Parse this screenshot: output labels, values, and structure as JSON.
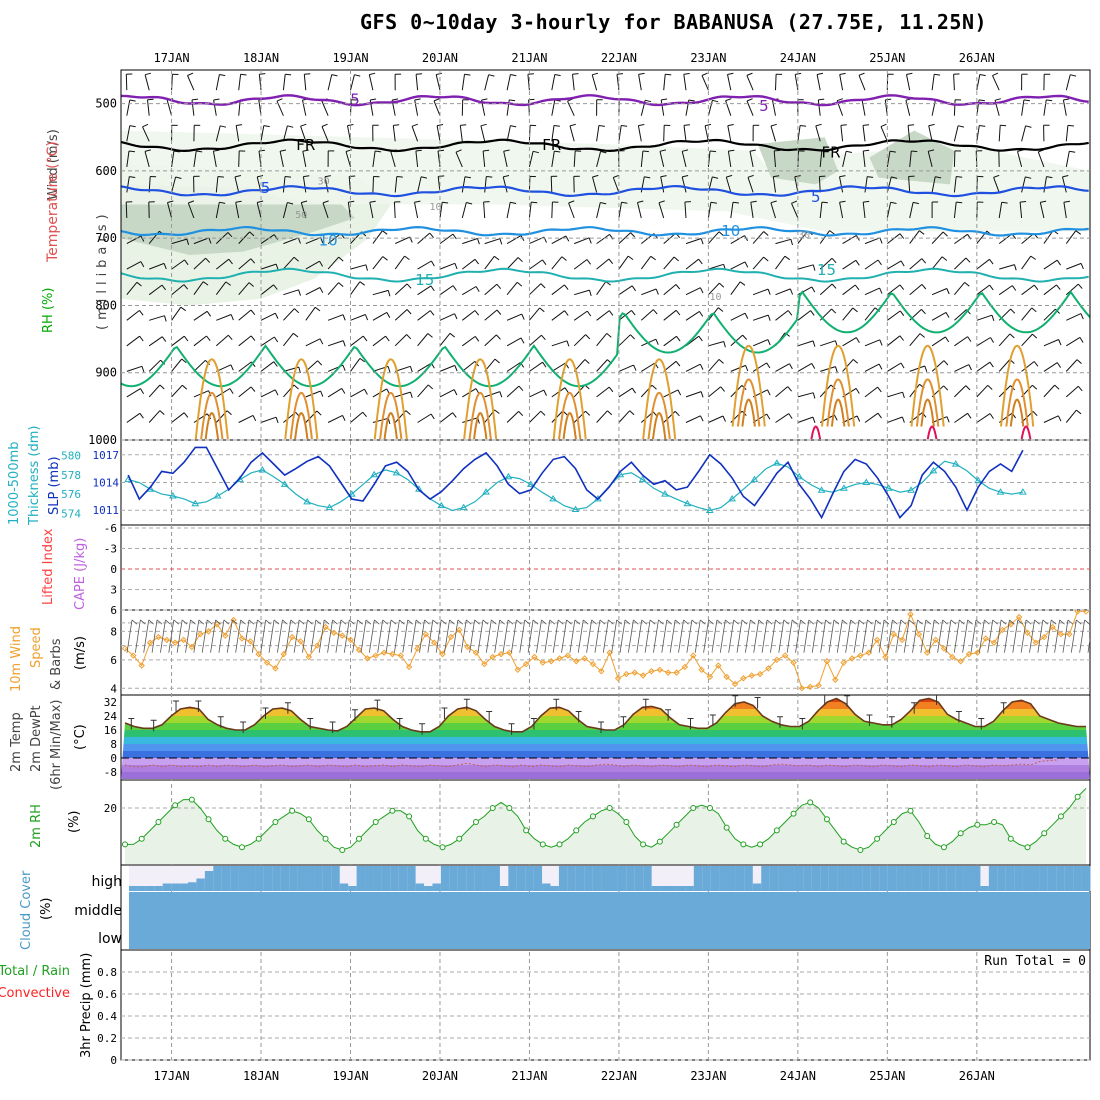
{
  "title": "GFS 0~10day 3-hourly for BABANUSA (27.75E, 11.25N)",
  "date_labels": [
    "17JAN",
    "18JAN",
    "19JAN",
    "20JAN",
    "21JAN",
    "22JAN",
    "23JAN",
    "24JAN",
    "25JAN",
    "26JAN"
  ],
  "panel_labels": {
    "upper": {
      "wind": "Wind (m/s)",
      "temperature": "Temperature (°C)",
      "rh": "RH (%)",
      "millibars": "(millibars)"
    },
    "thickness": {
      "thk": "1000-500mb",
      "thk2": "Thickness (dm)",
      "slp": "SLP (mb)"
    },
    "stability": {
      "li": "Lifted Index",
      "cape": "CAPE (J/kg)"
    },
    "wind10": {
      "a": "10m Wind",
      "b": "Speed",
      "c": "& Barbs",
      "units": "(m/s)"
    },
    "temp2m": {
      "a": "2m Temp",
      "b": "2m DewPt",
      "c": "(6hr Min/Max)",
      "units": "(°C)"
    },
    "rh2m": {
      "a": "2m RH",
      "units": "(%)"
    },
    "cloud": {
      "a": "Cloud Cover",
      "units": "(%)",
      "high": "high",
      "middle": "middle",
      "low": "low"
    },
    "precip": {
      "a": "Total / Rain",
      "b": "Convective",
      "c": "3hr Precip (mm)",
      "run_total": "Run Total = 0"
    }
  },
  "colors": {
    "temp_label": "#e05050",
    "rh_label": "#00bb00",
    "wind_label": "#444444",
    "slp": "#1030c0",
    "thk": "#20b0c0",
    "li": "#ff4040",
    "cape": "#c060e0",
    "wind10": "#f0a030",
    "rh2m": "#20a020",
    "cloud": "#6aaad8",
    "precip_total": "#20a020",
    "precip_conv": "#ff2020"
  },
  "chart_data": [
    {
      "type": "line",
      "panel": "upper_air",
      "yaxis": {
        "label": "millibars",
        "ticks": [
          500,
          600,
          700,
          800,
          900,
          1000
        ],
        "range": [
          450,
          1000
        ],
        "inverted": true
      },
      "contour_labels": [
        {
          "text": "5",
          "day": 2.05,
          "p": 492
        },
        {
          "text": "5",
          "day": 6.62,
          "p": 502
        },
        {
          "text": "FR",
          "day": 1.5,
          "p": 560
        },
        {
          "text": "FR",
          "day": 4.25,
          "p": 560
        },
        {
          "text": "FR",
          "day": 7.37,
          "p": 571
        },
        {
          "text": "5",
          "day": 1.05,
          "p": 624
        },
        {
          "text": "5",
          "day": 7.2,
          "p": 637
        },
        {
          "text": "10",
          "day": 1.75,
          "p": 702
        },
        {
          "text": "10",
          "day": 6.25,
          "p": 688
        },
        {
          "text": "15",
          "day": 2.83,
          "p": 761
        },
        {
          "text": "15",
          "day": 7.32,
          "p": 746
        },
        {
          "text": "30",
          "day": 1.7,
          "p": 620
        },
        {
          "text": "50",
          "day": 1.45,
          "p": 670
        },
        {
          "text": "10",
          "day": 2.95,
          "p": 658
        },
        {
          "text": "10",
          "day": 6.08,
          "p": 792
        },
        {
          "text": "30",
          "day": 7.07,
          "p": 700
        }
      ]
    },
    {
      "type": "line",
      "panel": "thickness_slp",
      "x": [
        0,
        0.125,
        0.25,
        0.375,
        0.5,
        0.625,
        0.75,
        0.875,
        1,
        1.125,
        1.25,
        1.375,
        1.5,
        1.625,
        1.75,
        1.875,
        2,
        2.125,
        2.25,
        2.375,
        2.5,
        2.625,
        2.75,
        2.875,
        3,
        3.125,
        3.25,
        3.375,
        3.5,
        3.625,
        3.75,
        3.875,
        4,
        4.125,
        4.25,
        4.375,
        4.5,
        4.625,
        4.75,
        4.875,
        5,
        5.125,
        5.25,
        5.375,
        5.5,
        5.625,
        5.75,
        5.875,
        6,
        6.125,
        6.25,
        6.375,
        6.5,
        6.625,
        6.75,
        6.875,
        7,
        7.125,
        7.25,
        7.375,
        7.5,
        7.625,
        7.75,
        7.875,
        8,
        8.125,
        8.25,
        8.375,
        8.5,
        8.625,
        8.75,
        8.875,
        9,
        9.125,
        9.25,
        9.375,
        9.5,
        9.625,
        9.75,
        9.875,
        10
      ],
      "series": [
        {
          "name": "SLP (mb)",
          "axis": "right",
          "values": [
            1014.8,
            1012.2,
            1013.5,
            1015.2,
            1015,
            1016.2,
            1017.8,
            1017.8,
            1015.5,
            1013.2,
            1014.5,
            1016.2,
            1017.2,
            1016,
            1014.8,
            1015.5,
            1016.3,
            1016.8,
            1015.8,
            1014,
            1012.2,
            1012,
            1013.8,
            1015.8,
            1016.2,
            1015.2,
            1013.2,
            1012.2,
            1013,
            1014.2,
            1015.5,
            1016.5,
            1017.2,
            1015.8,
            1013.8,
            1012.8,
            1013.2,
            1015,
            1016.5,
            1016.8,
            1015.5,
            1013.2,
            1012.2,
            1013.5,
            1015.2,
            1016.2,
            1014.8,
            1013.8,
            1014.2,
            1013.2,
            1013.5,
            1015.2,
            1017,
            1016,
            1014.5,
            1012.5,
            1011.5,
            1013.2,
            1015,
            1016.2,
            1013.8,
            1012.2,
            1010.2,
            1012.8,
            1015.2,
            1016.5,
            1016,
            1014.5,
            1012.5,
            1010.2,
            1011.5,
            1014.8,
            1016.2,
            1015.2,
            1013.5,
            1011,
            1013.5,
            1015.2,
            1016,
            1015.2,
            1017.5
          ]
        },
        {
          "name": "1000-500mb Thickness (dm)",
          "axis": "left",
          "values": [
            577.5,
            577.2,
            576.5,
            576,
            575.8,
            575.5,
            575,
            575.2,
            575.8,
            576.5,
            577.5,
            578.2,
            578.5,
            577.8,
            577,
            576,
            575.2,
            574.8,
            574.6,
            575.2,
            576,
            577,
            578,
            578.5,
            578.2,
            577.5,
            576.5,
            575.5,
            574.8,
            574.3,
            574.6,
            575.2,
            576.2,
            577.2,
            577.8,
            577.6,
            577,
            576.2,
            575.5,
            574.8,
            574.4,
            574.6,
            575.5,
            576.8,
            578,
            578.2,
            577.5,
            576.6,
            576,
            575.5,
            575,
            574.6,
            574.3,
            574.6,
            575.5,
            576.5,
            577.5,
            578.6,
            579.2,
            578.8,
            577.8,
            577,
            576.4,
            576.2,
            576.6,
            577,
            577.2,
            577,
            576.6,
            576.2,
            576.4,
            577.2,
            578.4,
            579.4,
            579.1,
            578.4,
            577.4,
            576.6,
            576.2,
            576,
            576.2
          ]
        }
      ],
      "left_ticks": [
        574,
        576,
        578,
        580
      ],
      "right_ticks": [
        1011,
        1014,
        1017
      ]
    },
    {
      "type": "line",
      "panel": "stability",
      "yaxis_ticks": [
        "-6",
        "-3",
        "0",
        "3",
        "6"
      ],
      "series": [
        {
          "name": "Lifted Index",
          "values": []
        },
        {
          "name": "CAPE (J/kg)",
          "values": []
        }
      ]
    },
    {
      "type": "line",
      "panel": "wind10m",
      "x_step_hours": 3,
      "yaxis_ticks": [
        4,
        6,
        8
      ],
      "ylim": [
        3.6,
        9.5
      ],
      "series": [
        {
          "name": "10m Wind Speed",
          "values": [
            6.8,
            6.3,
            5.6,
            7.2,
            7.6,
            7.4,
            7.2,
            7.4,
            6.9,
            7.8,
            8,
            8.5,
            7.7,
            8.8,
            7.5,
            7.3,
            6.4,
            5.8,
            5.4,
            6.4,
            7.6,
            7.3,
            6.2,
            7,
            8.3,
            7.9,
            7.7,
            7.4,
            6.7,
            6.1,
            6.3,
            6.5,
            6.4,
            6.3,
            5.5,
            6.8,
            7.8,
            7.2,
            6.4,
            7.6,
            8.1,
            6.9,
            6.5,
            5.7,
            6.2,
            6.4,
            6.5,
            5.3,
            5.7,
            6.2,
            5.8,
            5.9,
            6.1,
            6.3,
            5.9,
            6.1,
            5.7,
            5.2,
            6.5,
            4.7,
            5,
            5.1,
            4.9,
            5.2,
            5.3,
            5.1,
            5.1,
            5.5,
            6.3,
            5.3,
            4.8,
            5.6,
            4.8,
            4.3,
            4.7,
            4.9,
            5,
            5.4,
            6,
            6.3,
            5.8,
            4,
            4.1,
            4.2,
            5.9,
            4.6,
            5.8,
            6.1,
            6.3,
            6.5,
            7.4,
            6.2,
            7.8,
            7.4,
            9.2,
            7.8,
            6.5,
            7.4,
            6.8,
            6.2,
            5.9,
            6.4,
            6.5,
            7.5,
            7.2,
            8.1,
            8.5,
            9,
            7.9,
            7.2,
            7.6,
            8.3,
            7.8,
            7.8,
            9.4,
            9.4
          ]
        }
      ]
    },
    {
      "type": "area",
      "panel": "temp2m",
      "yaxis_ticks": [
        -8,
        0,
        8,
        16,
        24,
        32
      ],
      "ylim": [
        -12,
        36
      ],
      "series": [
        {
          "name": "2m Temp",
          "values": [
            20,
            18,
            17,
            17,
            19,
            24,
            28,
            29,
            28,
            22,
            19,
            17,
            16,
            16,
            19,
            24,
            28,
            28.5,
            27,
            22,
            18,
            17,
            16,
            15.5,
            18,
            23,
            28,
            28.5,
            27,
            22,
            18,
            16,
            15,
            15,
            18,
            24,
            28,
            29,
            27,
            22,
            18,
            16,
            15,
            15,
            18,
            24,
            28.5,
            29,
            27,
            22,
            18,
            17,
            16,
            16,
            19,
            25,
            29,
            29.5,
            28,
            23,
            19,
            18,
            17,
            17,
            20,
            26,
            31,
            32,
            30,
            24,
            21,
            19,
            18,
            18,
            21,
            27,
            32,
            34,
            31,
            25,
            21,
            20,
            19,
            19,
            22,
            27,
            33,
            34,
            32,
            25,
            22,
            20,
            18,
            18,
            21,
            27,
            32,
            33,
            31,
            24,
            22,
            20,
            19,
            18,
            18
          ]
        },
        {
          "name": "2m DewPt",
          "values": [
            -4,
            -5,
            -5,
            -4,
            -5,
            -4,
            -5,
            -4.5,
            -5,
            -4,
            -5,
            -4,
            -4.5,
            -5,
            -4,
            -5,
            -4.5,
            -4,
            -5,
            -4.5,
            -4,
            -5,
            -4,
            -4.5,
            -5,
            -4,
            -5,
            -4.5,
            -4,
            -5,
            -4,
            -4.5,
            -5,
            -4,
            -4.5,
            -5,
            -4,
            -3,
            -4,
            -5,
            -4,
            -4.5,
            -5,
            -4,
            -5,
            -4,
            -4.5,
            -5,
            -4,
            -4.5,
            -5,
            -4,
            -3.5,
            -4,
            -5,
            -4,
            -4.5,
            -5,
            -4,
            -4.5,
            -5,
            -4,
            -4.5,
            -5,
            -4,
            -4.5,
            -5,
            -4,
            -4.5,
            -5,
            -4,
            -3.5,
            -4,
            -4.5,
            -4,
            -5,
            -4,
            -4.5,
            -5,
            -4,
            -4.5,
            -5,
            -4,
            -4.5,
            -5,
            -4,
            -4.5,
            -5,
            -4,
            -4.5,
            -5,
            -4,
            -4.5,
            -5,
            -4,
            -4.5,
            -4,
            -3.5,
            -4,
            -2,
            -1.5,
            -1
          ]
        }
      ]
    },
    {
      "type": "area",
      "panel": "rh2m",
      "yaxis_ticks": [
        20
      ],
      "ylim": [
        0,
        30
      ],
      "series": [
        {
          "name": "2m RH",
          "values": [
            7,
            7,
            9,
            12,
            15,
            18,
            21,
            23,
            23,
            20,
            16,
            12,
            9,
            7,
            6,
            7,
            9,
            12,
            15,
            17,
            19,
            18,
            16,
            12,
            9,
            6,
            5,
            6,
            9,
            12,
            15,
            17,
            19,
            19,
            17,
            12,
            9,
            7,
            6,
            7,
            9,
            12,
            15,
            17,
            20,
            22,
            20,
            17,
            12,
            9,
            7,
            6,
            7,
            9,
            12,
            15,
            17,
            19,
            20,
            18,
            15,
            10,
            7,
            6,
            8,
            11,
            14,
            17,
            20,
            21,
            20,
            18,
            13,
            9,
            7,
            6,
            7,
            9,
            12,
            15,
            18,
            21,
            22,
            20,
            16,
            12,
            8,
            6,
            5,
            6,
            9,
            12,
            15,
            18,
            19,
            15,
            10,
            7,
            6,
            8,
            11,
            13,
            14,
            14,
            15,
            14,
            9,
            7,
            6,
            8,
            11,
            14,
            17,
            20,
            24,
            27
          ]
        }
      ]
    },
    {
      "type": "bar",
      "panel": "cloud_cover",
      "rows": [
        "high",
        "middle",
        "low"
      ],
      "series": [
        {
          "name": "high",
          "values": [
            20,
            20,
            20,
            20,
            30,
            30,
            30,
            35,
            50,
            80,
            100,
            100,
            100,
            100,
            100,
            100,
            100,
            100,
            100,
            100,
            100,
            100,
            100,
            100,
            100,
            30,
            20,
            100,
            100,
            100,
            100,
            100,
            100,
            100,
            30,
            20,
            30,
            100,
            100,
            100,
            100,
            100,
            100,
            100,
            20,
            100,
            100,
            100,
            100,
            30,
            20,
            100,
            100,
            100,
            100,
            100,
            100,
            100,
            100,
            100,
            100,
            100,
            20,
            20,
            20,
            20,
            20,
            100,
            100,
            100,
            100,
            100,
            100,
            100,
            30,
            100,
            100,
            100,
            100,
            100,
            100,
            100,
            100,
            100,
            100,
            100,
            100,
            100,
            100,
            100,
            100,
            100,
            100,
            100,
            100,
            100,
            100,
            100,
            100,
            100,
            100,
            20,
            100,
            100,
            100,
            100,
            100,
            100,
            100,
            100,
            100,
            100,
            100,
            100
          ]
        },
        {
          "name": "middle",
          "values": []
        },
        {
          "name": "low",
          "values": []
        }
      ]
    },
    {
      "type": "bar",
      "panel": "precip",
      "yaxis_ticks": [
        "0",
        "0.2",
        "0.4",
        "0.6",
        "0.8"
      ],
      "ylim": [
        0,
        1
      ],
      "series": [
        {
          "name": "Total / Rain",
          "values": []
        },
        {
          "name": "Convective",
          "values": []
        }
      ]
    }
  ]
}
